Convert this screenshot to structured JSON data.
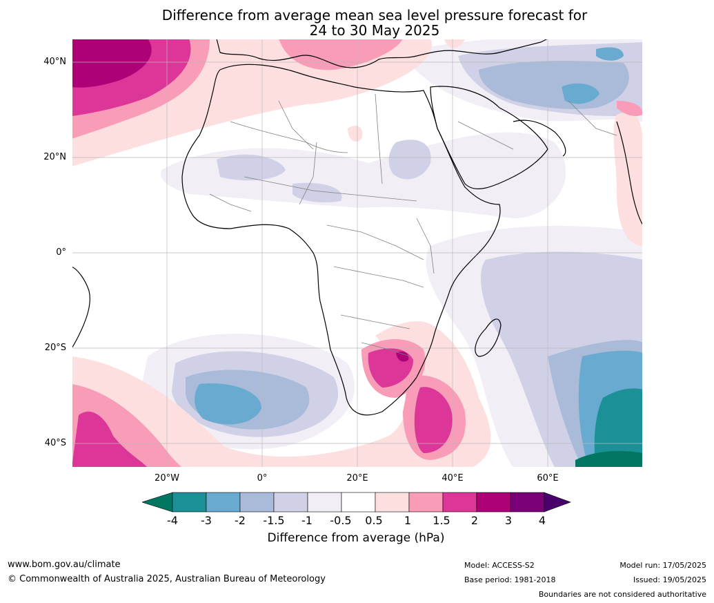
{
  "title": {
    "line1": "Difference from average mean sea level pressure forecast for",
    "line2": "24 to 30 May 2025"
  },
  "map": {
    "lat_labels": [
      "40°N",
      "20°N",
      "0°",
      "20°S",
      "40°S"
    ],
    "lon_labels": [
      "20°W",
      "0°",
      "20°E",
      "40°E",
      "60°E"
    ]
  },
  "colorbar": {
    "ticks": [
      "-4",
      "-3",
      "-2",
      "-1.5",
      "-1",
      "-0.5",
      "0.5",
      "1",
      "1.5",
      "2",
      "3",
      "4"
    ],
    "colors": [
      "#1b9096",
      "#69abd0",
      "#a9bbd9",
      "#d0d1e6",
      "#f1eef5",
      "#ffffff",
      "#fedfe0",
      "#f89cb8",
      "#dd3699",
      "#ad0178",
      "#7a0077"
    ],
    "under_color": "#017762",
    "over_color": "#49006a",
    "label": "Difference from average (hPa)"
  },
  "footer": {
    "website": "www.bom.gov.au/climate",
    "copyright": "© Commonwealth of Australia 2025, Australian Bureau of Meteorology",
    "model": "Model: ACCESS-S2",
    "base_period": "Base period: 1981-2018",
    "model_run": "Model run: 17/05/2025",
    "issued": "Issued: 19/05/2025",
    "disclaimer": "Boundaries are not considered authoritative"
  }
}
